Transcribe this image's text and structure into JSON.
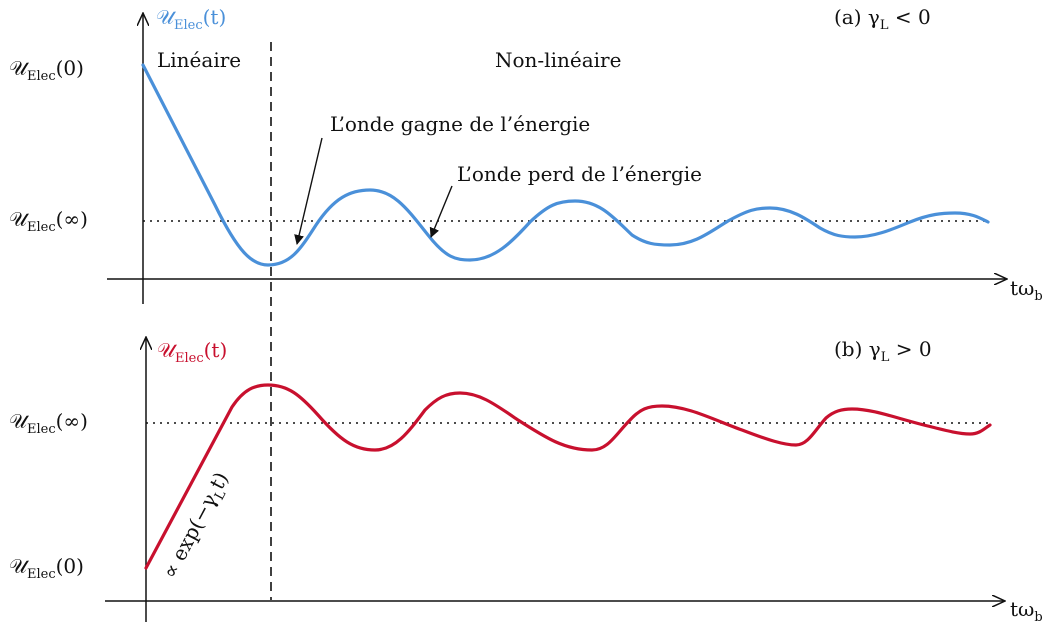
{
  "colors": {
    "curve_a": "#4a90d9",
    "curve_b": "#c8102e",
    "axes": "#111111"
  },
  "top_panel": {
    "ylabel": {
      "main": "𝒰",
      "sub": "Elec",
      "tail": "(t)"
    },
    "case_label": "(a)  γ",
    "case_sub": "L",
    "case_tail": " < 0",
    "tick_start": {
      "main": "𝒰",
      "sub": "Elec",
      "tail": "(0)"
    },
    "tick_inf": {
      "main": "𝒰",
      "sub": "Elec",
      "tail": "(∞)"
    },
    "region_linear": "Linéaire",
    "region_nonlinear": "Non-linéaire",
    "annotation_gain": "L’onde gagne de l’énergie",
    "annotation_loss": "L’onde perd de l’énergie",
    "xlabel": {
      "main": "tω",
      "sub": "b"
    }
  },
  "bottom_panel": {
    "ylabel": {
      "main": "𝒰",
      "sub": "Elec",
      "tail": "(t)"
    },
    "case_label": "(b)  γ",
    "case_sub": "L",
    "case_tail": " > 0",
    "tick_start": {
      "main": "𝒰",
      "sub": "Elec",
      "tail": "(0)"
    },
    "tick_inf": {
      "main": "𝒰",
      "sub": "Elec",
      "tail": "(∞)"
    },
    "slope_label": "∝ exp(−γ",
    "slope_sub": "L",
    "slope_tail": "t)",
    "xlabel": {
      "main": "tω",
      "sub": "b"
    }
  }
}
